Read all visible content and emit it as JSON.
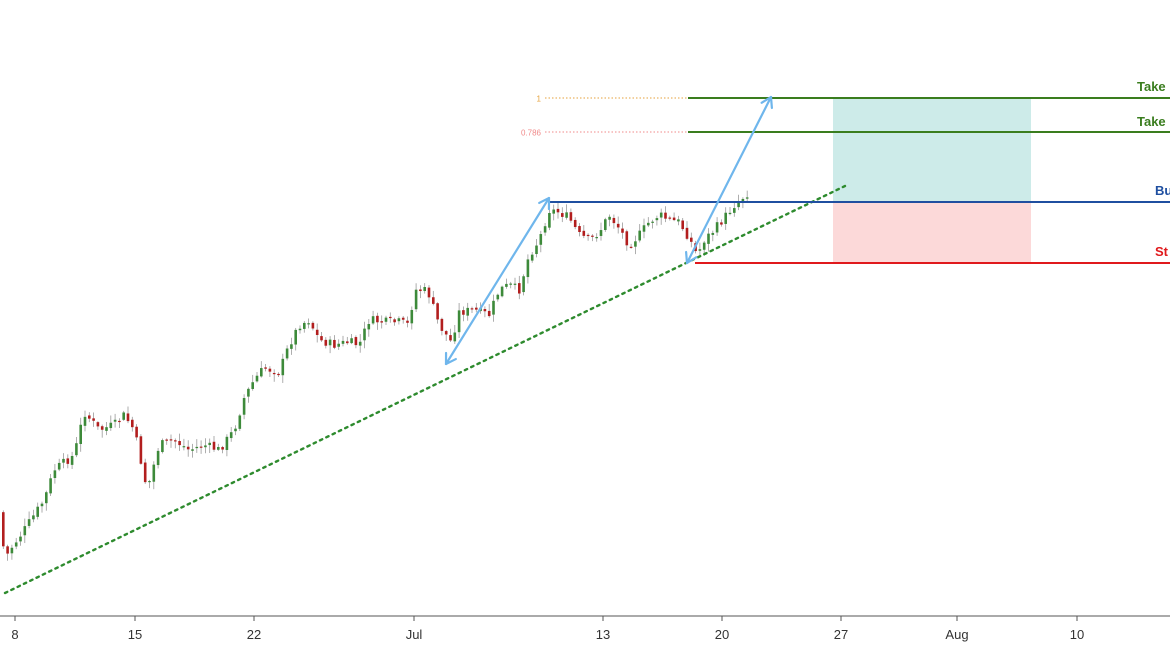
{
  "chart_data": {
    "type": "candlestick",
    "title": "",
    "xlabel": "",
    "ylabel": "",
    "x_ticks": [
      "8",
      "15",
      "22",
      "Jul",
      "13",
      "20",
      "27",
      "Aug",
      "10"
    ],
    "levels": [
      {
        "label": "Take",
        "kind": "take-profit-2",
        "color": "#3a7d1e"
      },
      {
        "label": "Take",
        "kind": "take-profit-1",
        "color": "#3a7d1e"
      },
      {
        "label": "Bu",
        "kind": "buy-entry",
        "color": "#1f4fa0"
      },
      {
        "label": "St",
        "kind": "stop-loss",
        "color": "#e0191c"
      }
    ],
    "fib_levels": [
      {
        "label": "1",
        "color": "#e6a23c"
      },
      {
        "label": "0.786",
        "color": "#f08a8a"
      }
    ],
    "zones": {
      "profit_color": "#cdebe9",
      "loss_color": "#fcd9d9"
    },
    "trendline": {
      "style": "dotted",
      "color": "#2e8b2e"
    },
    "swing_arrows_color": "#6fb6ec",
    "candle_colors": {
      "up": "#3d8a3a",
      "down": "#b21e1e",
      "wick": "#9a9a9a"
    },
    "grid": false,
    "legend": "none"
  }
}
